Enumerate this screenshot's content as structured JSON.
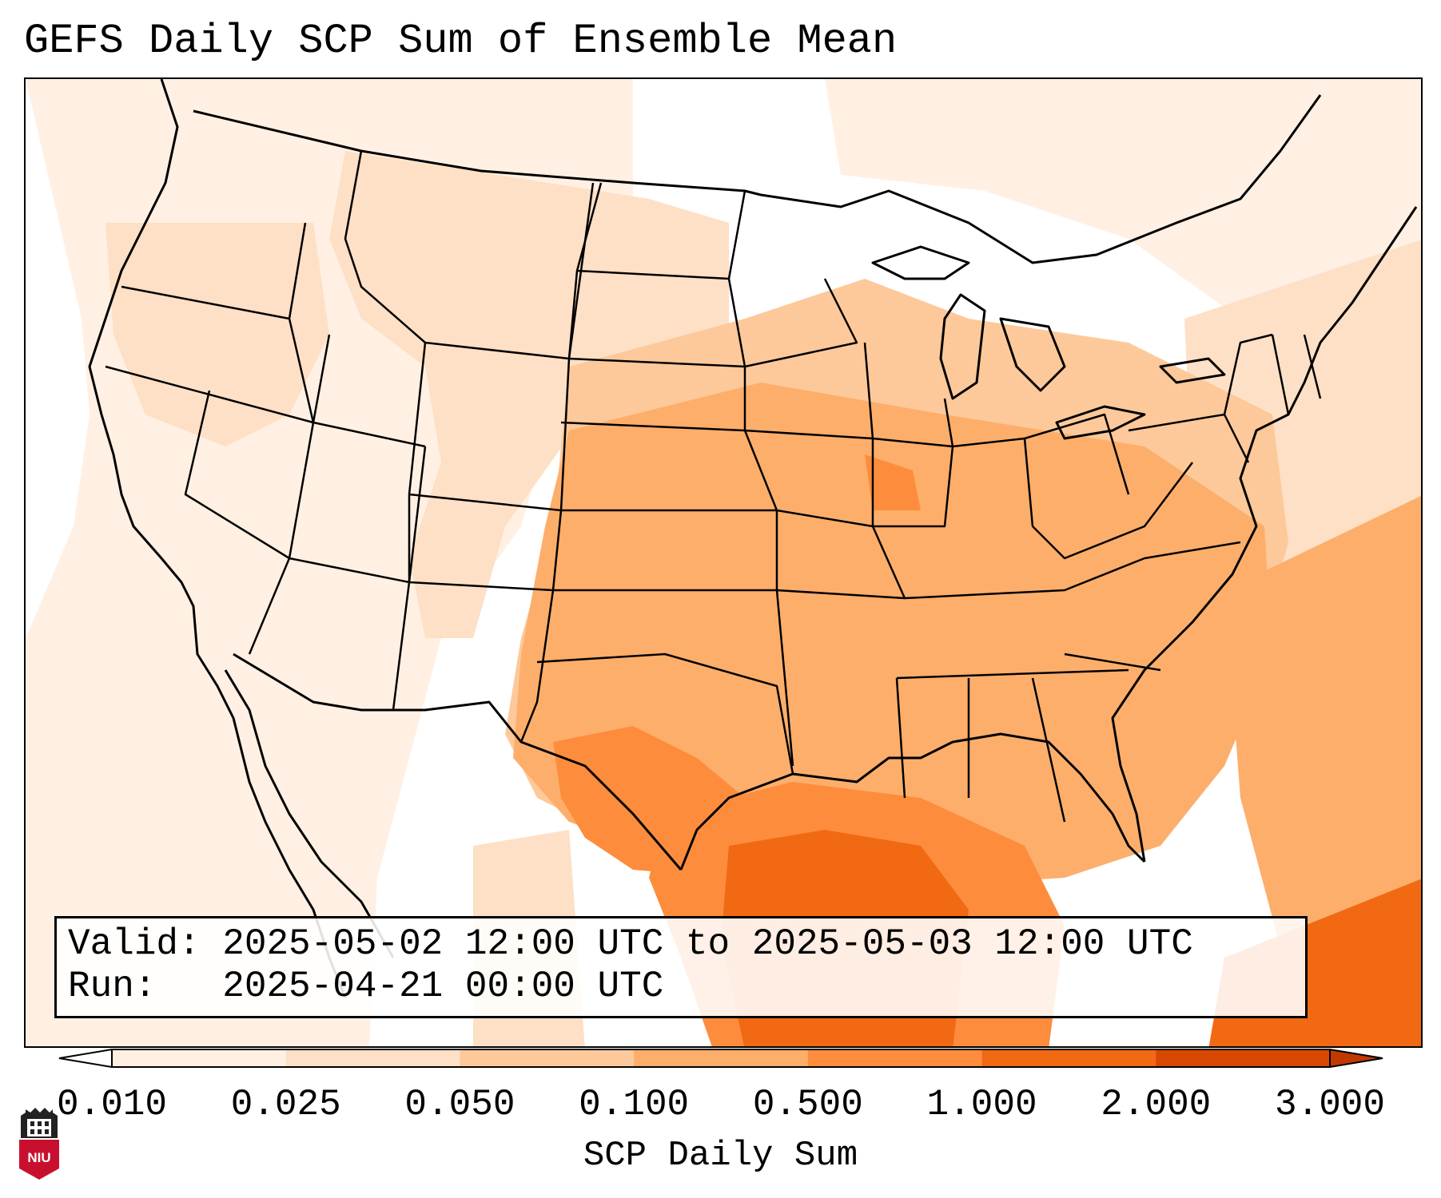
{
  "title": "GEFS Daily SCP Sum of Ensemble Mean",
  "info": {
    "valid": "Valid: 2025-05-02 12:00 UTC to 2025-05-03 12:00 UTC",
    "run": "Run:   2025-04-21 00:00 UTC"
  },
  "colorbar": {
    "label": "SCP Daily Sum",
    "ticks": [
      "0.010",
      "0.025",
      "0.050",
      "0.100",
      "0.500",
      "1.000",
      "2.000",
      "3.000"
    ],
    "colors": [
      "#fff0e3",
      "#fde0c5",
      "#fdc99a",
      "#fdae6b",
      "#fd8d3c",
      "#f16913",
      "#d94801"
    ],
    "extend": "both"
  },
  "logo": {
    "text": "NIU",
    "color": "#c8102e"
  }
}
